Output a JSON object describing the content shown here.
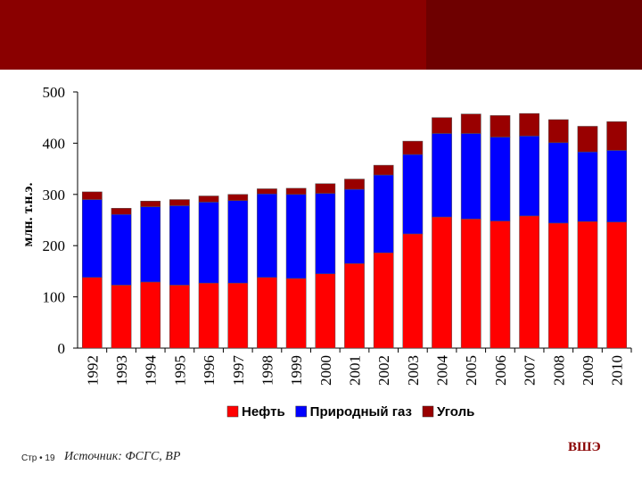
{
  "header": {
    "brand_color": "#8a0000"
  },
  "footer": {
    "page_label": "Стр • 19",
    "source_label": "Источник: ФСГС, ВР",
    "brand_label": "ВШЭ"
  },
  "chart_data": {
    "type": "bar",
    "stacked": true,
    "ylabel": "млн. т.н.э.",
    "ylim": [
      0,
      500
    ],
    "yticks": [
      0,
      100,
      200,
      300,
      400,
      500
    ],
    "grid": false,
    "legend_position": "bottom",
    "categories": [
      "1992",
      "1993",
      "1994",
      "1995",
      "1996",
      "1997",
      "1998",
      "1999",
      "2000",
      "2001",
      "2002",
      "2003",
      "2004",
      "2005",
      "2006",
      "2007",
      "2008",
      "2009",
      "2010"
    ],
    "series": [
      {
        "name": "Нефть",
        "color": "#ff0000",
        "values": [
          138,
          123,
          129,
          123,
          127,
          127,
          138,
          136,
          145,
          165,
          186,
          223,
          256,
          252,
          248,
          258,
          244,
          247,
          246
        ]
      },
      {
        "name": "Природный газ",
        "color": "#0000ff",
        "values": [
          152,
          138,
          147,
          155,
          158,
          161,
          163,
          164,
          157,
          145,
          152,
          155,
          163,
          167,
          164,
          156,
          157,
          136,
          140
        ]
      },
      {
        "name": "Уголь",
        "color": "#990000",
        "values": [
          15,
          12,
          11,
          12,
          12,
          12,
          10,
          12,
          19,
          20,
          19,
          26,
          31,
          38,
          42,
          44,
          45,
          50,
          56
        ]
      }
    ]
  }
}
